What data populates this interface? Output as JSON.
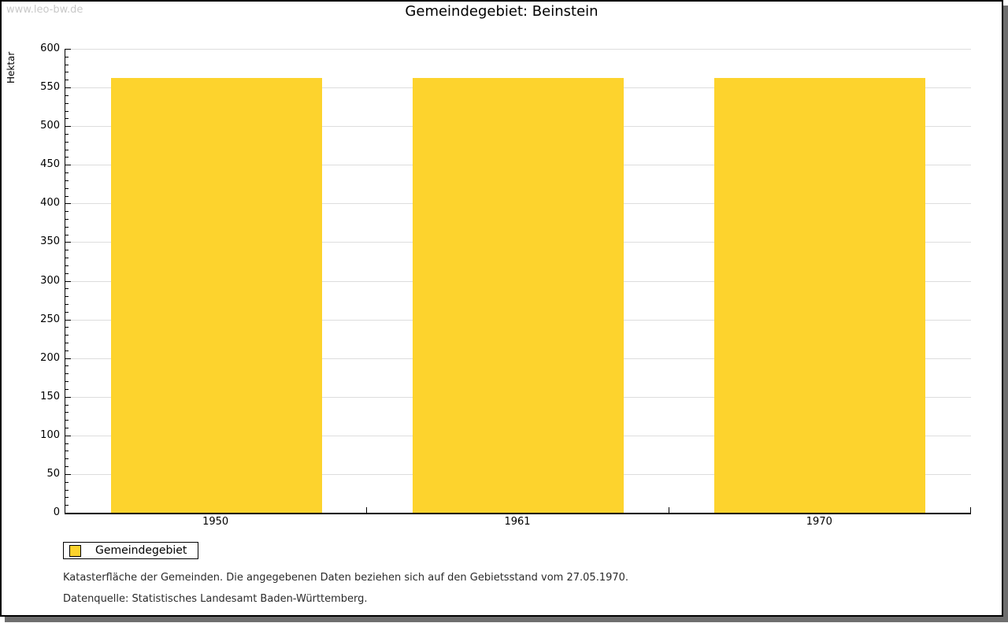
{
  "watermark": "www.leo-bw.de",
  "title": "Gemeindegebiet: Beinstein",
  "chart_data": {
    "type": "bar",
    "title": "Gemeindegebiet: Beinstein",
    "categories": [
      "1950",
      "1961",
      "1970"
    ],
    "series": [
      {
        "name": "Gemeindegebiet",
        "values": [
          562,
          562,
          562
        ]
      }
    ],
    "xlabel": "",
    "ylabel": "Hektar",
    "ylim": [
      0,
      600
    ],
    "y_major_step": 50,
    "y_minor_step": 10,
    "grid": true,
    "legend_position": "bottom-left",
    "bar_color": "#FDD32D"
  },
  "colors": {
    "bar": "#FDD32D",
    "grid": "#DDDDDD",
    "axis": "#000000",
    "watermark": "#C9C9C9"
  },
  "legend": {
    "label": "Gemeindegebiet"
  },
  "footer": {
    "line1": "Katasterfläche der Gemeinden. Die angegebenen Daten beziehen sich auf den Gebietsstand vom 27.05.1970.",
    "line2": "Datenquelle: Statistisches Landesamt Baden-Württemberg."
  }
}
